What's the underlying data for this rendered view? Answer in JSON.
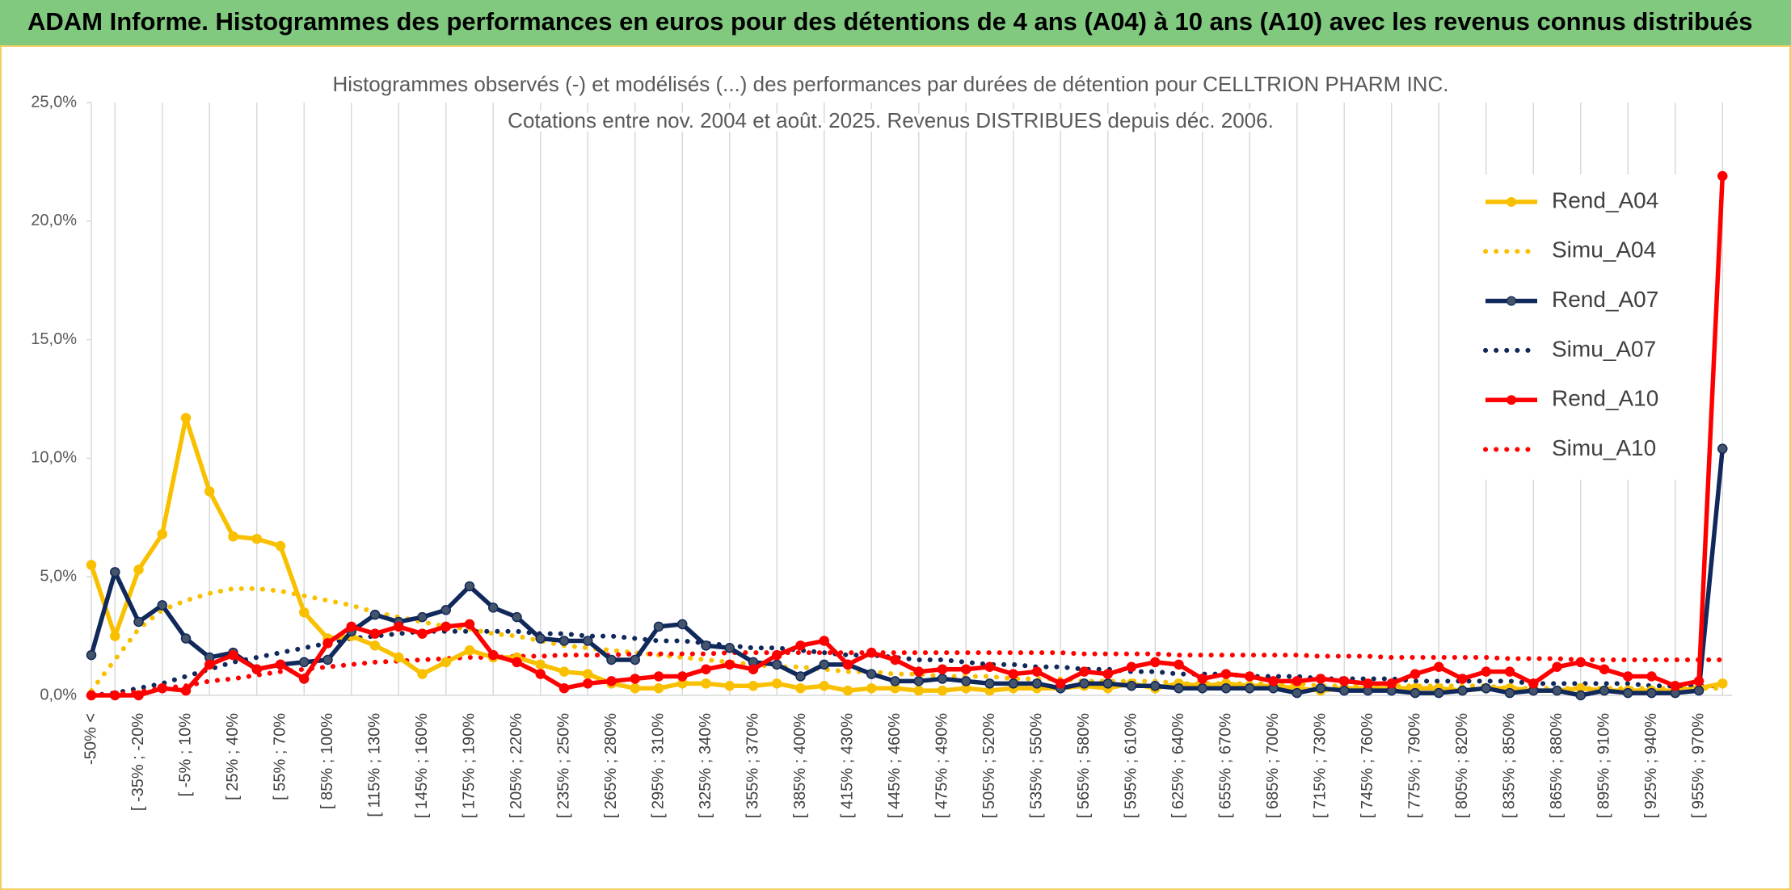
{
  "header": {
    "title": "ADAM Informe. Histogrammes des performances en euros pour des détentions de 4 ans (A04) à 10 ans (A10) avec les revenus connus distribués"
  },
  "chart_data": {
    "type": "line",
    "title": [
      "Histogrammes observés (-) et modélisés (...) des performances par durées de détention pour CELLTRION PHARM INC.",
      "Cotations entre nov. 2004 et août. 2025. Revenus DISTRIBUES depuis déc. 2006."
    ],
    "categories": [
      "-50% <",
      null,
      "[ -35% ; -20%",
      null,
      "[ -5% ; 10%",
      null,
      "[ 25% ; 40%",
      null,
      "[ 55% ; 70%",
      null,
      "[ 85% ; 100%",
      null,
      "[ 115% ; 130%",
      null,
      "[ 145% ; 160%",
      null,
      "[ 175% ; 190%",
      null,
      "[ 205% ; 220%",
      null,
      "[ 235% ; 250%",
      null,
      "[ 265% ; 280%",
      null,
      "[ 295% ; 310%",
      null,
      "[ 325% ; 340%",
      null,
      "[ 355% ; 370%",
      null,
      "[ 385% ; 400%",
      null,
      "[ 415% ; 430%",
      null,
      "[ 445% ; 460%",
      null,
      "[ 475% ; 490%",
      null,
      "[ 505% ; 520%",
      null,
      "[ 535% ; 550%",
      null,
      "[ 565% ; 580%",
      null,
      "[ 595% ; 610%",
      null,
      "[ 625% ; 640%",
      null,
      "[ 655% ; 670%",
      null,
      "[ 685% ; 700%",
      null,
      "[ 715% ; 730%",
      null,
      "[ 745% ; 760%",
      null,
      "[ 775% ; 790%",
      null,
      "[ 805% ; 820%",
      null,
      "[ 835% ; 850%",
      null,
      "[ 865% ; 880%",
      null,
      "[ 895% ; 910%",
      null,
      "[ 925% ; 940%",
      null,
      "[ 955% ; 970%",
      null
    ],
    "series": [
      {
        "name": "Rend_A04",
        "color": "#f9c000",
        "style": "solid",
        "markers": true,
        "values": [
          5.5,
          2.5,
          5.3,
          6.8,
          11.7,
          8.6,
          6.7,
          6.6,
          6.3,
          3.5,
          2.4,
          2.5,
          2.1,
          1.6,
          0.9,
          1.4,
          1.9,
          1.6,
          1.6,
          1.3,
          1.0,
          0.9,
          0.5,
          0.3,
          0.3,
          0.5,
          0.5,
          0.4,
          0.4,
          0.5,
          0.3,
          0.4,
          0.2,
          0.3,
          0.3,
          0.2,
          0.2,
          0.3,
          0.2,
          0.3,
          0.3,
          0.3,
          0.4,
          0.3,
          0.5,
          0.3,
          0.5,
          0.4,
          0.5,
          0.4,
          0.4,
          0.3,
          0.2,
          0.3,
          0.3,
          0.3,
          0.3,
          0.3,
          0.2,
          0.3,
          0.3,
          0.2,
          0.2,
          0.3,
          0.2,
          0.2,
          0.2,
          0.2,
          0.3,
          0.5
        ]
      },
      {
        "name": "Simu_A04",
        "color": "#f9c000",
        "style": "dotted",
        "markers": false,
        "values": [
          0.2,
          1.5,
          2.8,
          3.6,
          4.0,
          4.3,
          4.5,
          4.5,
          4.4,
          4.2,
          4.0,
          3.8,
          3.5,
          3.3,
          3.1,
          2.9,
          2.8,
          2.6,
          2.5,
          2.3,
          2.1,
          2.0,
          1.9,
          1.8,
          1.7,
          1.6,
          1.5,
          1.4,
          1.3,
          1.2,
          1.2,
          1.1,
          1.0,
          1.0,
          0.9,
          0.9,
          0.8,
          0.8,
          0.8,
          0.7,
          0.7,
          0.7,
          0.6,
          0.6,
          0.6,
          0.6,
          0.5,
          0.5,
          0.5,
          0.5,
          0.5,
          0.5,
          0.4,
          0.4,
          0.4,
          0.4,
          0.4,
          0.4,
          0.4,
          0.4,
          0.3,
          0.3,
          0.3,
          0.3,
          0.3,
          0.3,
          0.3,
          0.3,
          0.3,
          0.3
        ]
      },
      {
        "name": "Rend_A07",
        "color": "#10285a",
        "style": "solid",
        "markers": true,
        "values": [
          1.7,
          5.2,
          3.1,
          3.8,
          2.4,
          1.6,
          1.8,
          1.1,
          1.3,
          1.4,
          1.5,
          2.7,
          3.4,
          3.1,
          3.3,
          3.6,
          4.6,
          3.7,
          3.3,
          2.4,
          2.3,
          2.3,
          1.5,
          1.5,
          2.9,
          3.0,
          2.1,
          2.0,
          1.4,
          1.3,
          0.8,
          1.3,
          1.3,
          0.9,
          0.6,
          0.6,
          0.7,
          0.6,
          0.5,
          0.5,
          0.5,
          0.3,
          0.5,
          0.5,
          0.4,
          0.4,
          0.3,
          0.3,
          0.3,
          0.3,
          0.3,
          0.1,
          0.3,
          0.2,
          0.2,
          0.2,
          0.1,
          0.1,
          0.2,
          0.3,
          0.1,
          0.2,
          0.2,
          0.0,
          0.2,
          0.1,
          0.1,
          0.1,
          0.2,
          10.4
        ]
      },
      {
        "name": "Simu_A07",
        "color": "#10285a",
        "style": "dotted",
        "markers": false,
        "values": [
          0.0,
          0.1,
          0.3,
          0.5,
          0.8,
          1.1,
          1.4,
          1.6,
          1.8,
          2.0,
          2.2,
          2.4,
          2.5,
          2.6,
          2.7,
          2.7,
          2.7,
          2.7,
          2.7,
          2.6,
          2.6,
          2.5,
          2.5,
          2.4,
          2.3,
          2.3,
          2.2,
          2.1,
          2.0,
          2.0,
          1.9,
          1.8,
          1.7,
          1.7,
          1.6,
          1.5,
          1.5,
          1.4,
          1.3,
          1.3,
          1.2,
          1.2,
          1.1,
          1.1,
          1.0,
          1.0,
          0.9,
          0.9,
          0.9,
          0.8,
          0.8,
          0.8,
          0.7,
          0.7,
          0.7,
          0.7,
          0.6,
          0.6,
          0.6,
          0.6,
          0.6,
          0.5,
          0.5,
          0.5,
          0.5,
          0.5,
          0.4,
          0.4,
          0.4,
          0.4
        ]
      },
      {
        "name": "Rend_A10",
        "color": "#ff0000",
        "style": "solid",
        "markers": true,
        "values": [
          0.0,
          0.0,
          0.0,
          0.3,
          0.2,
          1.3,
          1.7,
          1.1,
          1.3,
          0.7,
          2.2,
          2.9,
          2.6,
          2.9,
          2.6,
          2.9,
          3.0,
          1.7,
          1.4,
          0.9,
          0.3,
          0.5,
          0.6,
          0.7,
          0.8,
          0.8,
          1.1,
          1.3,
          1.1,
          1.7,
          2.1,
          2.3,
          1.3,
          1.8,
          1.5,
          1.0,
          1.1,
          1.1,
          1.2,
          0.9,
          1.0,
          0.5,
          1.0,
          0.9,
          1.2,
          1.4,
          1.3,
          0.7,
          0.9,
          0.8,
          0.6,
          0.6,
          0.7,
          0.6,
          0.5,
          0.5,
          0.9,
          1.2,
          0.7,
          1.0,
          1.0,
          0.5,
          1.2,
          1.4,
          1.1,
          0.8,
          0.8,
          0.4,
          0.6,
          21.9
        ]
      },
      {
        "name": "Simu_A10",
        "color": "#ff0000",
        "style": "dotted",
        "markers": false,
        "values": [
          0.0,
          0.05,
          0.15,
          0.3,
          0.4,
          0.6,
          0.7,
          0.85,
          1.0,
          1.1,
          1.2,
          1.3,
          1.4,
          1.45,
          1.5,
          1.55,
          1.6,
          1.6,
          1.65,
          1.65,
          1.7,
          1.7,
          1.7,
          1.75,
          1.75,
          1.75,
          1.75,
          1.8,
          1.8,
          1.8,
          1.8,
          1.8,
          1.8,
          1.8,
          1.8,
          1.8,
          1.8,
          1.8,
          1.8,
          1.8,
          1.8,
          1.8,
          1.75,
          1.75,
          1.75,
          1.75,
          1.7,
          1.7,
          1.7,
          1.7,
          1.7,
          1.7,
          1.65,
          1.65,
          1.65,
          1.6,
          1.6,
          1.6,
          1.6,
          1.6,
          1.55,
          1.55,
          1.55,
          1.5,
          1.5,
          1.5,
          1.5,
          1.5,
          1.5,
          1.5
        ]
      }
    ],
    "ylim": [
      0,
      25
    ],
    "yticks": [
      {
        "value": 0,
        "label": "0,0%"
      },
      {
        "value": 5,
        "label": "5,0%"
      },
      {
        "value": 10,
        "label": "10,0%"
      },
      {
        "value": 15,
        "label": "15,0%"
      },
      {
        "value": 20,
        "label": "20,0%"
      },
      {
        "value": 25,
        "label": "25,0%"
      }
    ],
    "grid": "vertical",
    "legend": "right"
  }
}
